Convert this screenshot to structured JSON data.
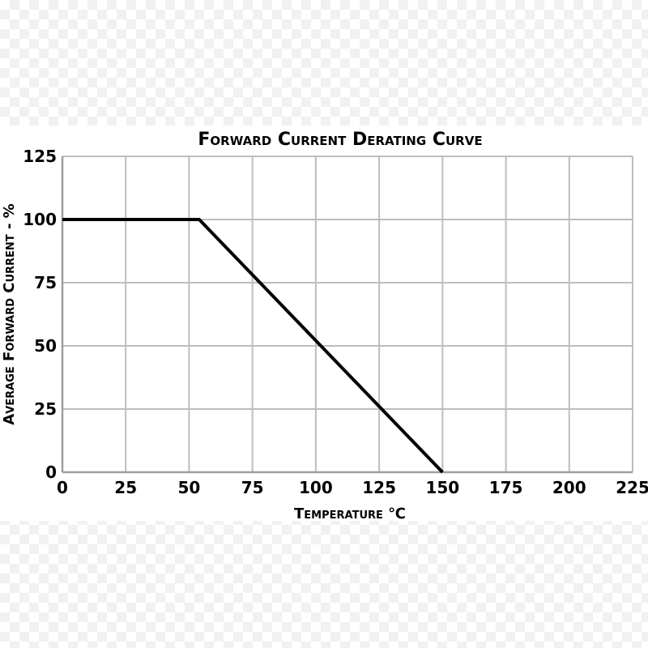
{
  "chart_data": {
    "type": "line",
    "title": "Forward Current Derating Curve",
    "xlabel": "Temperature ℃",
    "ylabel": "Average Forward Current - %",
    "xlim": [
      0,
      225
    ],
    "ylim": [
      0,
      125
    ],
    "x_ticks": [
      "0",
      "25",
      "50",
      "75",
      "100",
      "125",
      "150",
      "175",
      "200",
      "225"
    ],
    "y_ticks": [
      "0",
      "25",
      "50",
      "75",
      "100",
      "125"
    ],
    "grid": true,
    "series": [
      {
        "x": [
          0,
          54,
          150
        ],
        "y": [
          100,
          100,
          0
        ]
      }
    ],
    "colors": {
      "line": "#000000",
      "grid": "#bdbdbd",
      "axis": "#9e9e9e",
      "text": "#000000"
    }
  }
}
